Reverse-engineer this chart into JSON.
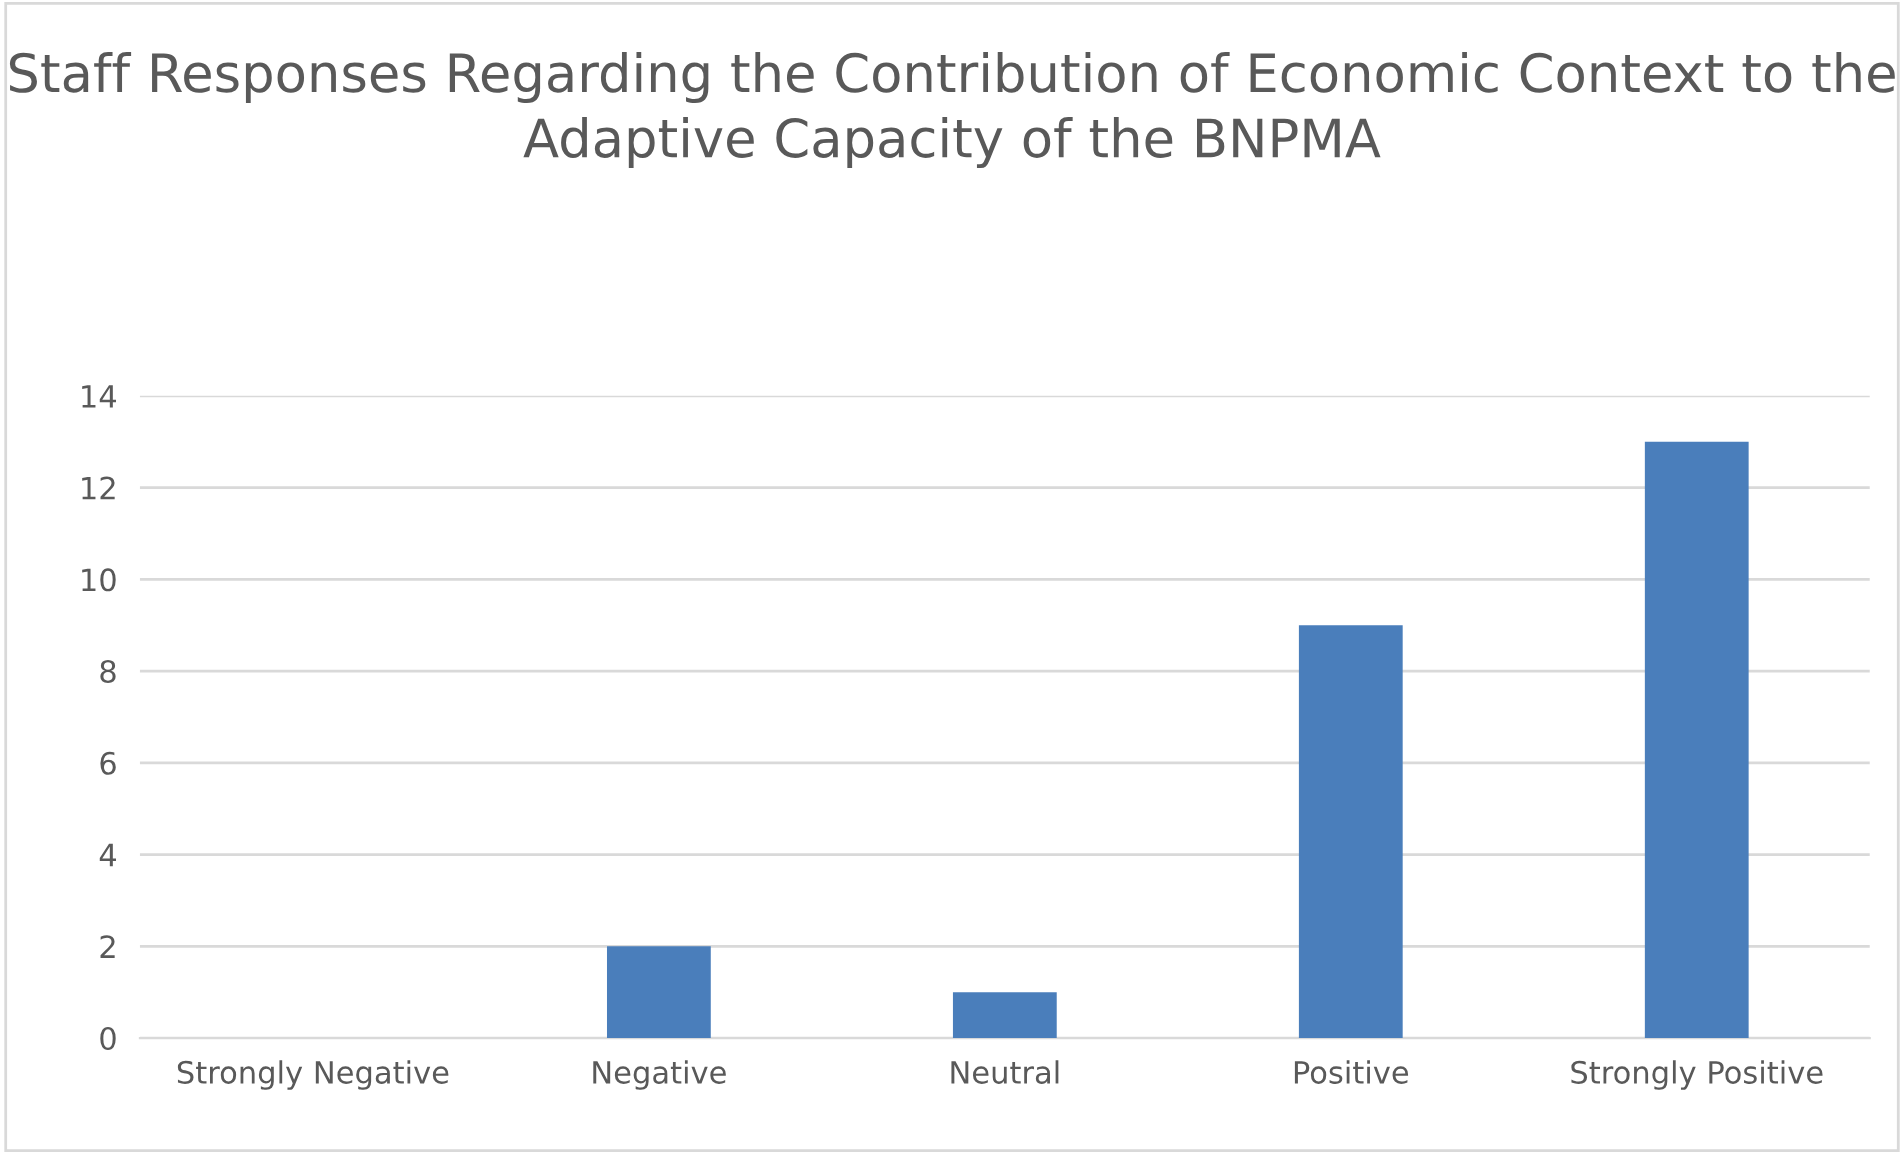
{
  "chart_data": {
    "type": "bar",
    "title": "Staff Responses Regarding the Contribution of Economic Context to the Adaptive Capacity of the BNPMA",
    "categories": [
      "Strongly Negative",
      "Negative",
      "Neutral",
      "Positive",
      "Strongly Positive"
    ],
    "values": [
      0,
      2,
      1,
      9,
      13
    ],
    "color": "#4a7ebb",
    "ylim": [
      0,
      14
    ],
    "yticks": [
      0,
      2,
      4,
      6,
      8,
      10,
      12,
      14
    ],
    "grid": "y",
    "legend": false
  }
}
